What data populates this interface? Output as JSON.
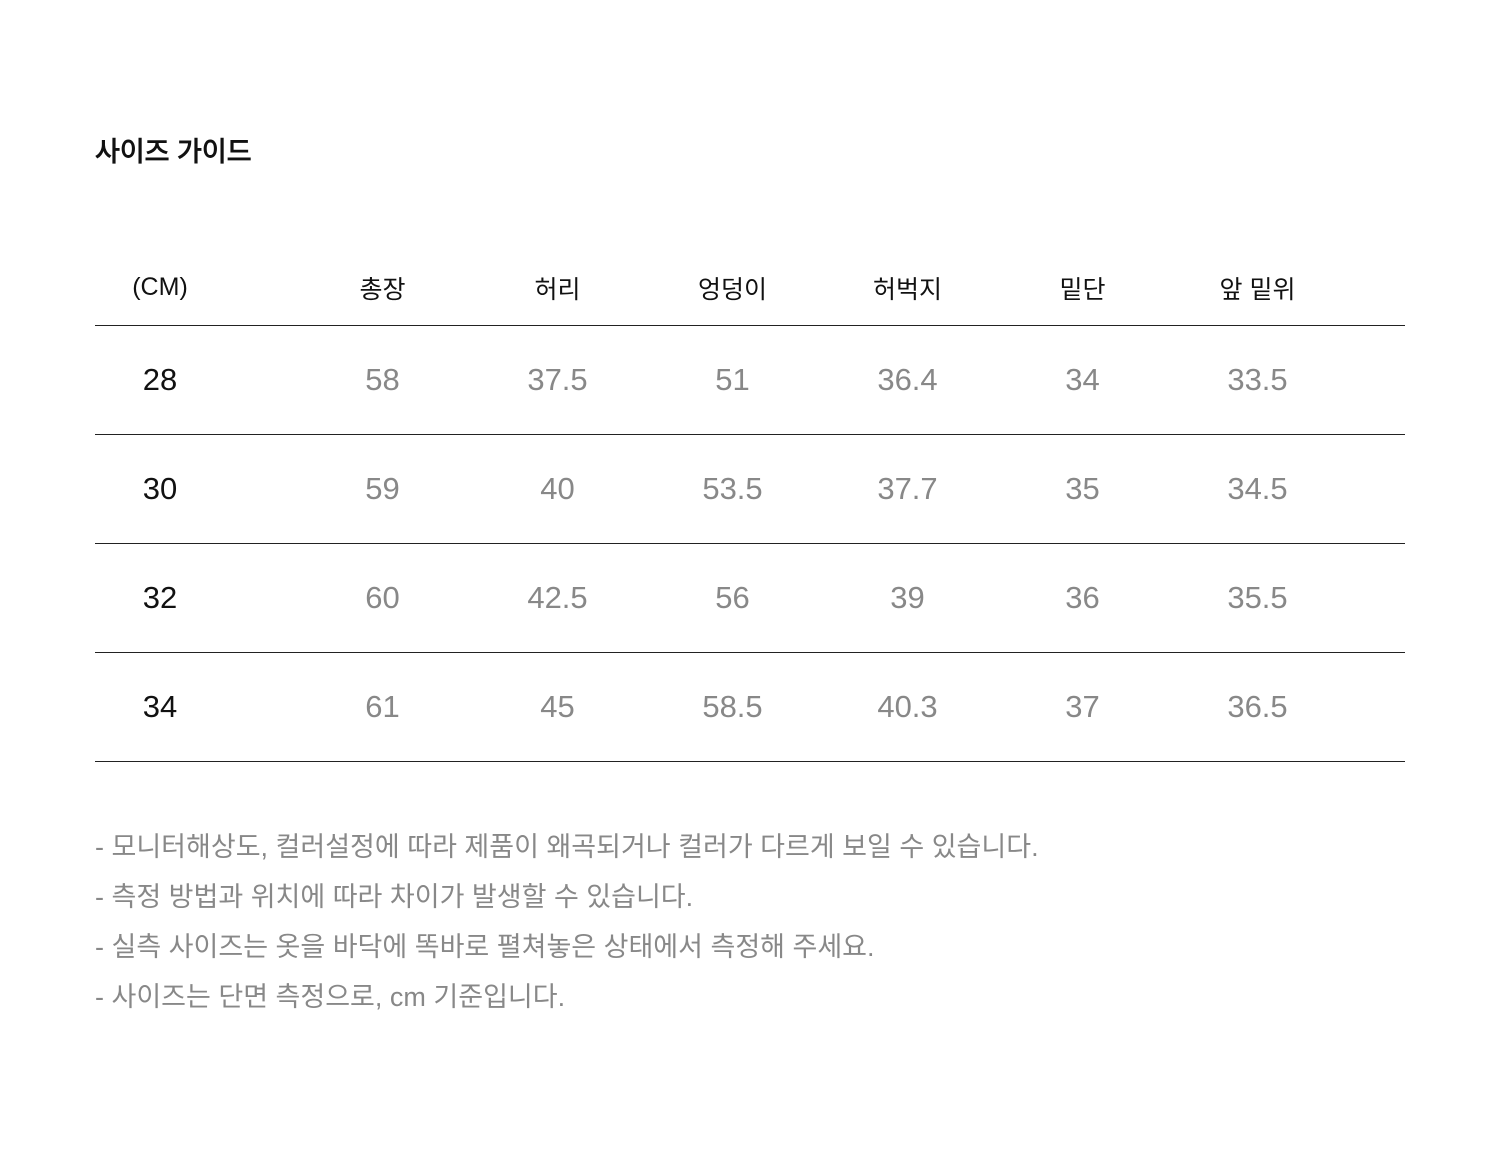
{
  "title": "사이즈 가이드",
  "table": {
    "headers": [
      "(CM)",
      "총장",
      "허리",
      "엉덩이",
      "허벅지",
      "밑단",
      "앞 밑위"
    ],
    "rows": [
      [
        "28",
        "58",
        "37.5",
        "51",
        "36.4",
        "34",
        "33.5"
      ],
      [
        "30",
        "59",
        "40",
        "53.5",
        "37.7",
        "35",
        "34.5"
      ],
      [
        "32",
        "60",
        "42.5",
        "56",
        "39",
        "36",
        "35.5"
      ],
      [
        "34",
        "61",
        "45",
        "58.5",
        "40.3",
        "37",
        "36.5"
      ]
    ]
  },
  "notes": [
    "- 모니터해상도, 컬러설정에 따라 제품이 왜곡되거나 컬러가 다르게 보일 수 있습니다.",
    "- 측정 방법과 위치에 따라 차이가 발생할 수 있습니다.",
    "- 실측 사이즈는 옷을 바닥에 똑바로 펼쳐놓은 상태에서 측정해 주세요.",
    "- 사이즈는 단면 측정으로, cm 기준입니다."
  ]
}
